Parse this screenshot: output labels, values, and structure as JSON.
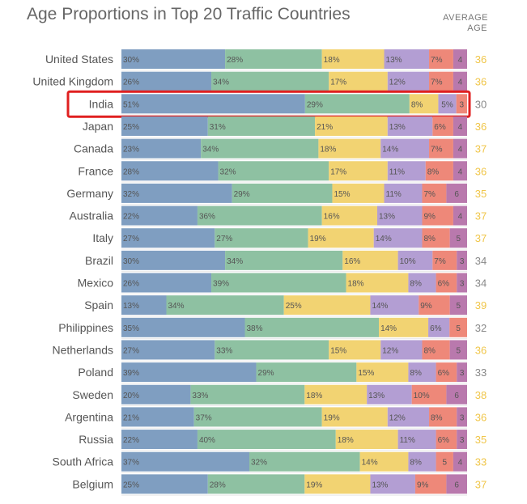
{
  "title": "Age Proportions in Top 20 Traffic Countries",
  "avg_header_line1": "AVERAGE",
  "avg_header_line2": "AGE",
  "colors": {
    "segments": [
      "#7f9ec1",
      "#8ec1a2",
      "#f2d372",
      "#b39ed3",
      "#ee8879",
      "#b979ad"
    ],
    "avg_text": "#f0c64a",
    "avg_text_alt": "#888888",
    "highlight": "#e02020",
    "row_divider": "#ffffff"
  },
  "chart_data": {
    "type": "bar",
    "stacked": true,
    "orientation": "horizontal",
    "title": "Age Proportions in Top 20 Traffic Countries",
    "categories": [
      "United States",
      "United Kingdom",
      "India",
      "Japan",
      "Canada",
      "France",
      "Germany",
      "Australia",
      "Italy",
      "Brazil",
      "Mexico",
      "Spain",
      "Philippines",
      "Netherlands",
      "Poland",
      "Sweden",
      "Argentina",
      "Russia",
      "South Africa",
      "Belgium"
    ],
    "series": [
      {
        "values": [
          30,
          26,
          51,
          25,
          23,
          28,
          32,
          22,
          27,
          30,
          26,
          13,
          35,
          27,
          39,
          20,
          21,
          22,
          37,
          25
        ]
      },
      {
        "values": [
          28,
          34,
          29,
          31,
          34,
          32,
          29,
          36,
          27,
          34,
          39,
          34,
          38,
          33,
          29,
          33,
          37,
          40,
          32,
          28
        ]
      },
      {
        "values": [
          18,
          17,
          8,
          21,
          18,
          17,
          15,
          16,
          19,
          16,
          18,
          25,
          14,
          15,
          15,
          18,
          19,
          18,
          14,
          19
        ]
      },
      {
        "values": [
          13,
          12,
          5,
          13,
          14,
          11,
          11,
          13,
          14,
          10,
          8,
          14,
          6,
          12,
          8,
          13,
          12,
          11,
          8,
          13
        ]
      },
      {
        "values": [
          7,
          7,
          3,
          6,
          7,
          8,
          7,
          9,
          8,
          7,
          6,
          9,
          5,
          8,
          6,
          10,
          8,
          6,
          5,
          9
        ]
      },
      {
        "values": [
          4,
          4,
          null,
          4,
          4,
          4,
          6,
          4,
          5,
          3,
          3,
          5,
          null,
          5,
          3,
          6,
          3,
          3,
          4,
          6
        ]
      }
    ],
    "average_age": [
      36,
      36,
      30,
      36,
      37,
      36,
      35,
      37,
      37,
      34,
      34,
      39,
      32,
      36,
      33,
      38,
      36,
      35,
      33,
      37
    ],
    "highlighted_category": "India",
    "xlim": [
      0,
      100
    ],
    "legend": "none"
  }
}
